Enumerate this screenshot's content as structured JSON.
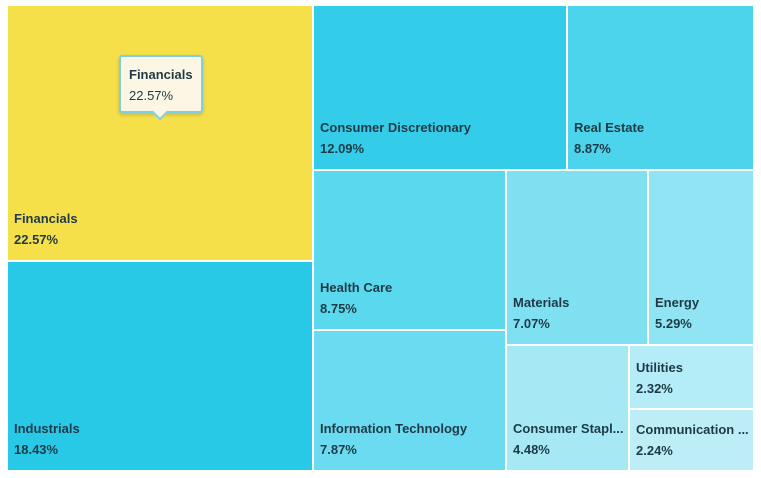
{
  "chart_data": {
    "type": "treemap",
    "items": [
      {
        "name": "Financials",
        "value": "22.57%",
        "color": "#f6e04a",
        "highlighted": true
      },
      {
        "name": "Industrials",
        "value": "18.43%",
        "color": "#27c9e7"
      },
      {
        "name": "Consumer Discretionary",
        "value": "12.09%",
        "color": "#33cde9"
      },
      {
        "name": "Real Estate",
        "value": "8.87%",
        "color": "#4bd4ec"
      },
      {
        "name": "Health Care",
        "value": "8.75%",
        "color": "#5ad8ee"
      },
      {
        "name": "Information Technology",
        "value": "7.87%",
        "color": "#6adbf0"
      },
      {
        "name": "Materials",
        "value": "7.07%",
        "color": "#7fe0f2"
      },
      {
        "name": "Energy",
        "value": "5.29%",
        "color": "#90e4f3"
      },
      {
        "name": "Consumer Stapl...",
        "value": "4.48%",
        "color": "#a6e9f5"
      },
      {
        "name": "Utilities",
        "value": "2.32%",
        "color": "#b4ecf7"
      },
      {
        "name": "Communication ...",
        "value": "2.24%",
        "color": "#bdeef8"
      }
    ],
    "tooltip": {
      "name": "Financials",
      "value": "22.57%"
    }
  }
}
